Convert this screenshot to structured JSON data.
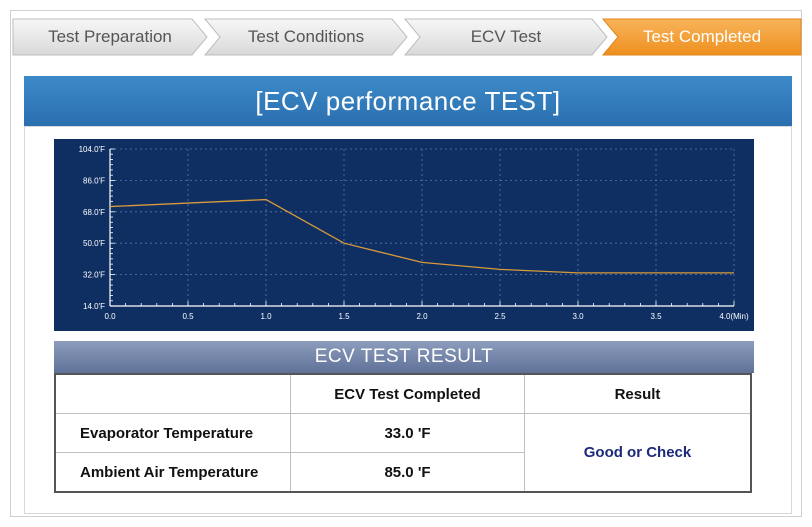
{
  "steps": [
    {
      "label": "Test Preparation",
      "active": false
    },
    {
      "label": "Test Conditions",
      "active": false
    },
    {
      "label": "ECV Test",
      "active": false
    },
    {
      "label": "Test Completed",
      "active": true
    }
  ],
  "panel": {
    "title": "[ECV performance TEST]"
  },
  "chart_data": {
    "type": "line",
    "x": [
      0.0,
      1.0,
      1.5,
      2.0,
      2.5,
      3.0,
      4.0
    ],
    "series": [
      {
        "values": [
          71,
          75,
          50,
          39,
          35,
          33,
          33
        ],
        "color": "#d89a3a"
      }
    ],
    "xlim": [
      0,
      4
    ],
    "ylim": [
      14,
      104
    ],
    "x_ticks": [
      "0.0",
      "0.5",
      "1.0",
      "1.5",
      "2.0",
      "2.5",
      "3.0",
      "3.5",
      "4.0(Min)"
    ],
    "y_ticks": [
      "14.0'F",
      "32.0'F",
      "50.0'F",
      "68.0'F",
      "86.0'F",
      "104.0'F"
    ],
    "grid": true,
    "background": "#0f2f63"
  },
  "result": {
    "title": "ECV TEST RESULT",
    "headers": [
      "",
      "ECV Test Completed",
      "Result"
    ],
    "rows": [
      {
        "name": "Evaporator Temperature",
        "value": "33.0 'F"
      },
      {
        "name": "Ambient Air Temperature",
        "value": "85.0 'F"
      }
    ],
    "result_text": "Good or Check"
  }
}
